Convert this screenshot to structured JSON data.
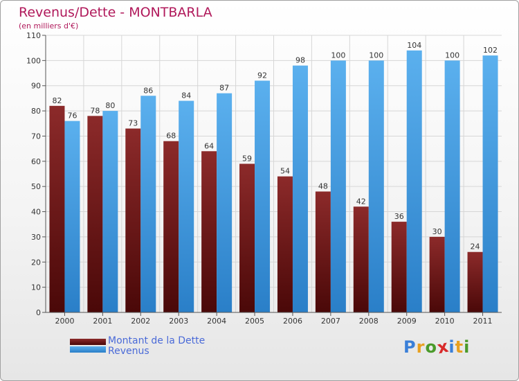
{
  "chart_data": {
    "type": "bar",
    "title": "Revenus/Dette - MONTBARLA",
    "subtitle": "(en milliers d'€)",
    "categories": [
      "2000",
      "2001",
      "2002",
      "2003",
      "2004",
      "2005",
      "2006",
      "2007",
      "2008",
      "2009",
      "2010",
      "2011"
    ],
    "series": [
      {
        "name": "Montant de la Dette",
        "color": "#7a1a1a",
        "values": [
          82,
          78,
          73,
          68,
          64,
          59,
          54,
          48,
          42,
          36,
          30,
          24
        ]
      },
      {
        "name": "Revenus",
        "color": "#4aa3e6",
        "values": [
          76,
          80,
          86,
          84,
          87,
          92,
          98,
          100,
          100,
          104,
          100,
          102
        ]
      }
    ],
    "ylim": [
      0,
      110
    ],
    "yticks": [
      0,
      10,
      20,
      30,
      40,
      50,
      60,
      70,
      80,
      90,
      100,
      110
    ],
    "grid": true,
    "legend_position": "bottom-left"
  },
  "branding": {
    "logo_letters": [
      "P",
      "r",
      "o",
      "x",
      "i",
      "t",
      "i"
    ],
    "logo_colors": [
      "#3a7fd8",
      "#e8a020",
      "#4a9a2a",
      "#d82a2a",
      "#3a7fd8",
      "#e8a020",
      "#4a9a2a"
    ]
  }
}
